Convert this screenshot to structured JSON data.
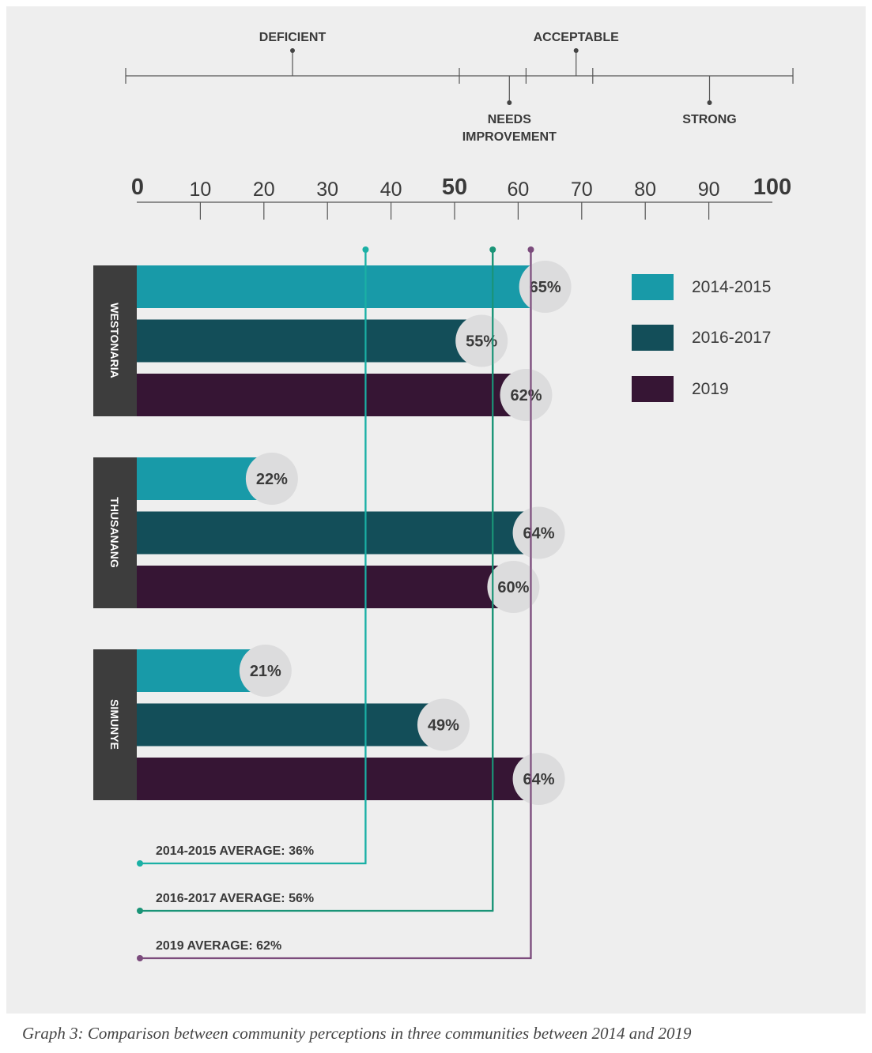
{
  "caption": "Graph 3: Comparison between community perceptions in three communities between 2014 and 2019",
  "rating_scale": [
    {
      "label": [
        "DEFICIENT"
      ],
      "value": 25
    },
    {
      "label": [
        "NEEDS",
        "IMPROVEMENT"
      ],
      "value": 57.5
    },
    {
      "label": [
        "ACCEPTABLE"
      ],
      "value": 67.5
    },
    {
      "label": [
        "STRONG"
      ],
      "value": 87.5
    }
  ],
  "rating_scale_boundaries": [
    0,
    50,
    60,
    70,
    100
  ],
  "colors": {
    "2014-2015": "#189aa8",
    "2016-2017": "#134e59",
    "2019": "#361534",
    "avg_2014-2015": "#1ab0a5",
    "avg_2016-2017": "#1a9477",
    "avg_2019": "#7b4b7c",
    "group_label_bg": "#3d3d3d",
    "value_circle": "#dcdcdd",
    "text": "#3a3a3a"
  },
  "chart_data": {
    "type": "bar",
    "orientation": "horizontal",
    "categories": [
      "WESTONARIA",
      "THUSANANG",
      "SIMUNYE"
    ],
    "series": [
      {
        "name": "2014-2015",
        "values": [
          65,
          22,
          21
        ]
      },
      {
        "name": "2016-2017",
        "values": [
          55,
          64,
          49
        ]
      },
      {
        "name": "2019",
        "values": [
          62,
          60,
          64
        ]
      }
    ],
    "value_labels": [
      [
        "65%",
        "22%",
        "21%"
      ],
      [
        "55%",
        "64%",
        "49%"
      ],
      [
        "62%",
        "60%",
        "64%"
      ]
    ],
    "xlim": [
      0,
      100
    ],
    "xticks": [
      0,
      10,
      20,
      30,
      40,
      50,
      60,
      70,
      80,
      90,
      100
    ],
    "xtick_labels": [
      "0",
      "10",
      "20",
      "30",
      "40",
      "50",
      "60",
      "70",
      "80",
      "90",
      "100"
    ],
    "bold_ticks": [
      "0",
      "50",
      "100"
    ],
    "averages": [
      {
        "series": "2014-2015",
        "value": 36,
        "label": "2014-2015 AVERAGE: 36%"
      },
      {
        "series": "2016-2017",
        "value": 56,
        "label": "2016-2017 AVERAGE: 56%"
      },
      {
        "series": "2019",
        "value": 62,
        "label": "2019 AVERAGE: 62%"
      }
    ],
    "legend": {
      "position": "right",
      "entries": [
        "2014-2015",
        "2016-2017",
        "2019"
      ]
    }
  }
}
